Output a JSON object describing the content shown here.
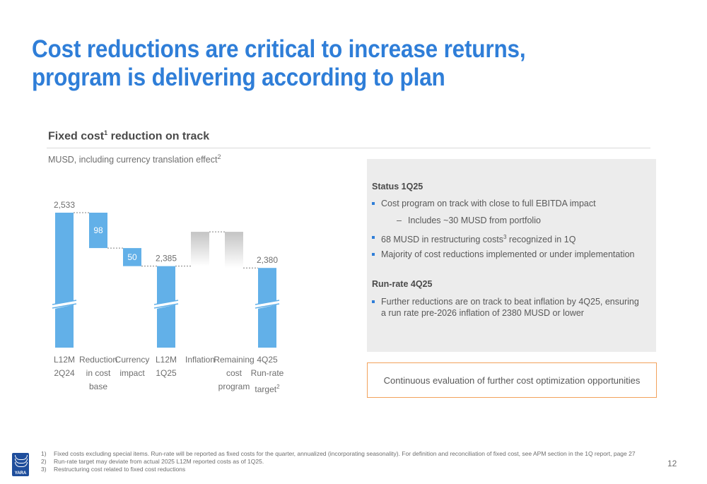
{
  "title": {
    "line1": "Cost reductions are critical to increase returns,",
    "line2": "program is delivering according to plan"
  },
  "chart_heading": {
    "text": "Fixed cost",
    "sup": "1",
    "rest": " reduction on track"
  },
  "chart_subtitle": {
    "text": "MUSD, including currency translation effect",
    "sup": "2"
  },
  "chart_data": {
    "type": "bar",
    "subtype": "waterfall",
    "categories": [
      "L12M 2Q24",
      "Reduction in cost base",
      "Currency impact",
      "L12M 1Q25",
      "Inflation",
      "Remaining cost program",
      "4Q25 Run-rate target"
    ],
    "category_labels": [
      {
        "text": "L12M\n2Q24",
        "sup": ""
      },
      {
        "text": "Reduction\nin cost\nbase",
        "sup": ""
      },
      {
        "text": "Currency\nimpact",
        "sup": ""
      },
      {
        "text": "L12M\n1Q25",
        "sup": ""
      },
      {
        "text": "Inflation",
        "sup": ""
      },
      {
        "text": "Remaining\ncost\nprogram",
        "sup": ""
      },
      {
        "text": "4Q25\nRun-rate\ntarget",
        "sup": "2"
      }
    ],
    "bars": [
      {
        "kind": "total",
        "value": 2533,
        "label": "2,533"
      },
      {
        "kind": "decrease",
        "value": 98,
        "label": "98"
      },
      {
        "kind": "decrease",
        "value": 50,
        "label": "50"
      },
      {
        "kind": "total",
        "value": 2385,
        "label": "2,385"
      },
      {
        "kind": "increase_unlabeled",
        "value": 95,
        "label": ""
      },
      {
        "kind": "decrease_unlabeled",
        "value": 100,
        "label": ""
      },
      {
        "kind": "total",
        "value": 2380,
        "label": "2,380"
      }
    ],
    "axis_break": true,
    "colors": {
      "bar": "#62b0e8",
      "faded_top": "#c4c4c4",
      "connector": "#808080",
      "inbar_text": "#ffffff",
      "label_text": "#6e6e6e"
    }
  },
  "status": {
    "title": "Status 1Q25",
    "bullet1": "Cost program on track with close to full EBITDA impact",
    "sub1": "Includes ~30 MUSD from portfolio",
    "bullet2_pre": "68 MUSD in restructuring costs",
    "bullet2_sup": "3",
    "bullet2_post": " recognized in 1Q",
    "bullet3": "Majority of cost reductions implemented or under implementation",
    "dash": "–"
  },
  "runrate": {
    "title": "Run-rate 4Q25",
    "bullet1": "Further reductions are on track to beat inflation by 4Q25, ensuring a run rate pre-2026 inflation of 2380 MUSD or lower"
  },
  "callout": "Continuous evaluation of further cost optimization opportunities",
  "footnotes": [
    {
      "num": "1)",
      "text": "Fixed costs excluding special items. Run-rate will be reported as fixed costs for the quarter, annualized (incorporating seasonality). For definition and reconciliation of fixed cost, see APM section in the 1Q report, page 27"
    },
    {
      "num": "2)",
      "text": "Run-rate target may deviate from actual 2025 L12M reported costs as of 1Q25."
    },
    {
      "num": "3)",
      "text": "Restructuring cost related to fixed cost reductions"
    }
  ],
  "logo": {
    "icon": "yara-viking-ship-icon",
    "word": "YARA"
  },
  "page_number": "12"
}
